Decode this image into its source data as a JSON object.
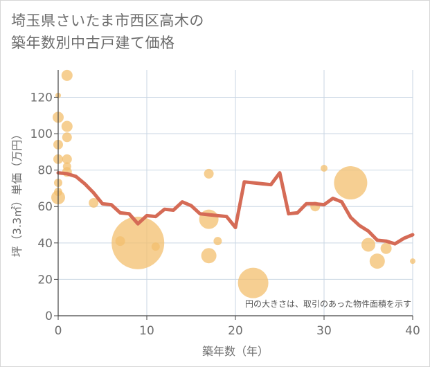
{
  "chart_data": {
    "type": "scatter",
    "title_line1": "埼玉県さいたま市西区高木の",
    "title_line2": "築年数別中古戸建て価格",
    "xlabel": "築年数（年）",
    "ylabel": "坪（3.3㎡）単価（万円）",
    "note": "円の大きさは、取引のあった物件面積を示す",
    "xlim": [
      0,
      40
    ],
    "ylim": [
      0,
      135
    ],
    "xticks": [
      0,
      10,
      20,
      30,
      40
    ],
    "yticks": [
      0,
      20,
      40,
      60,
      80,
      100,
      120
    ],
    "colors": {
      "bubble": "#f3bf6e",
      "line": "#d56b56",
      "grid": "#c9d6e3"
    },
    "bubbles": [
      {
        "x": 0,
        "y": 121,
        "size": 4
      },
      {
        "x": 0,
        "y": 109,
        "size": 8
      },
      {
        "x": 1,
        "y": 132,
        "size": 8
      },
      {
        "x": 1,
        "y": 104,
        "size": 8
      },
      {
        "x": 1,
        "y": 98,
        "size": 7
      },
      {
        "x": 0,
        "y": 94,
        "size": 7
      },
      {
        "x": 0,
        "y": 86,
        "size": 7
      },
      {
        "x": 1,
        "y": 86,
        "size": 7
      },
      {
        "x": 1,
        "y": 82,
        "size": 6
      },
      {
        "x": 1,
        "y": 79,
        "size": 7
      },
      {
        "x": 0,
        "y": 73,
        "size": 6
      },
      {
        "x": 0,
        "y": 68,
        "size": 6
      },
      {
        "x": 0,
        "y": 65,
        "size": 10
      },
      {
        "x": 4,
        "y": 62,
        "size": 7
      },
      {
        "x": 7,
        "y": 41,
        "size": 7
      },
      {
        "x": 9,
        "y": 40,
        "size": 38
      },
      {
        "x": 11,
        "y": 38,
        "size": 6
      },
      {
        "x": 17,
        "y": 78,
        "size": 7
      },
      {
        "x": 17,
        "y": 53,
        "size": 14
      },
      {
        "x": 17,
        "y": 33,
        "size": 11
      },
      {
        "x": 18,
        "y": 41,
        "size": 6
      },
      {
        "x": 22,
        "y": 18,
        "size": 22
      },
      {
        "x": 29,
        "y": 60,
        "size": 7
      },
      {
        "x": 30,
        "y": 81,
        "size": 5
      },
      {
        "x": 33,
        "y": 73,
        "size": 24
      },
      {
        "x": 35,
        "y": 39,
        "size": 10
      },
      {
        "x": 36,
        "y": 30,
        "size": 11
      },
      {
        "x": 37,
        "y": 37,
        "size": 8
      },
      {
        "x": 40,
        "y": 30,
        "size": 4
      }
    ],
    "line": {
      "x": [
        0,
        1,
        2,
        3,
        4,
        5,
        6,
        7,
        8,
        9,
        10,
        11,
        12,
        13,
        14,
        15,
        16,
        17,
        18,
        19,
        20,
        21,
        22,
        23,
        24,
        25,
        26,
        27,
        28,
        29,
        30,
        31,
        32,
        33,
        34,
        35,
        36,
        37,
        38,
        39,
        40
      ],
      "y": [
        78.5,
        78,
        76.5,
        72.5,
        67.5,
        61.5,
        61,
        56.5,
        56,
        50.5,
        55,
        54.5,
        58.5,
        58,
        62.5,
        60.5,
        56,
        55.5,
        55,
        54.5,
        48.5,
        73.5,
        73,
        72.5,
        72,
        78.5,
        56,
        56.5,
        61.5,
        61.5,
        61,
        64.5,
        62.5,
        54,
        49.5,
        46.5,
        41.5,
        41,
        39.5,
        42.5,
        44.5
      ]
    }
  }
}
